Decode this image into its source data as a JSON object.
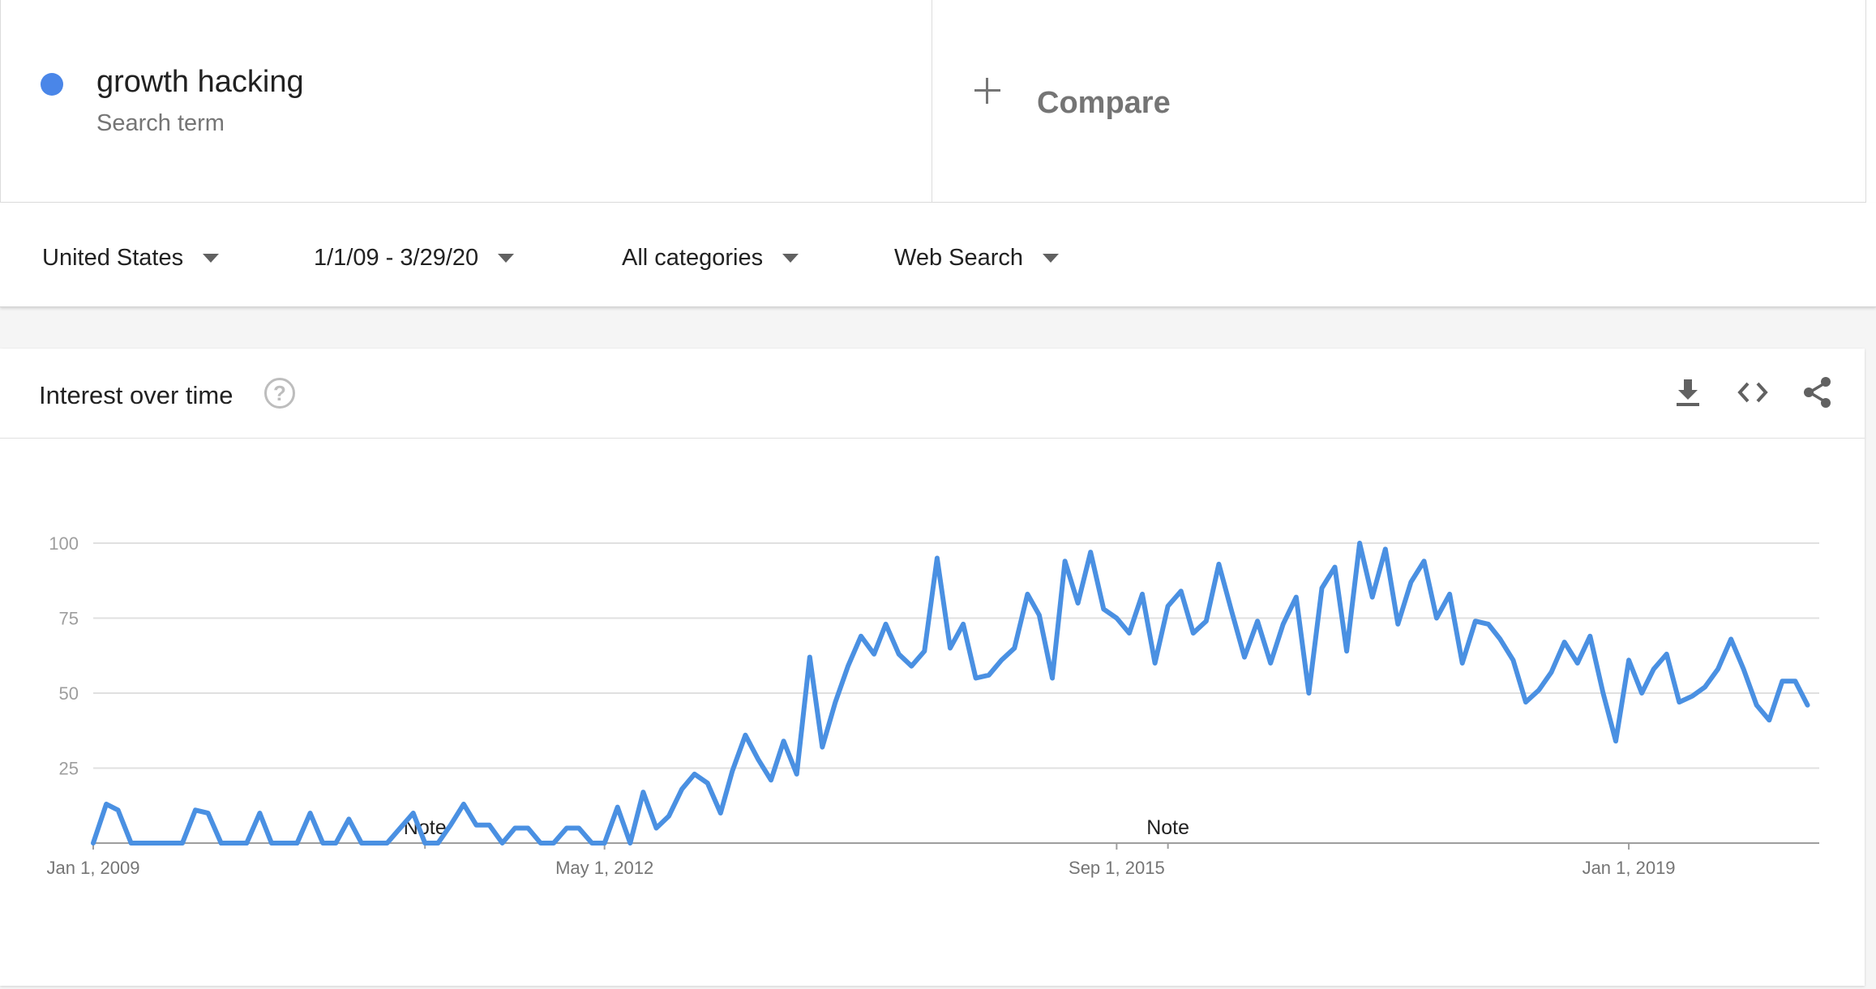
{
  "search_term": {
    "name": "growth hacking",
    "subtitle": "Search term",
    "color": "#4a86e8"
  },
  "compare": {
    "label": "Compare",
    "icon": "plus-icon"
  },
  "filters": {
    "region": "United States",
    "date_range": "1/1/09 - 3/29/20",
    "category": "All categories",
    "search_type": "Web Search"
  },
  "card": {
    "title": "Interest over time",
    "help_icon": "help-icon",
    "actions": [
      "download-icon",
      "embed-icon",
      "share-icon"
    ]
  },
  "chart_data": {
    "type": "line",
    "title": "",
    "xlabel": "",
    "ylabel": "",
    "ylim": [
      0,
      100
    ],
    "yticks": [
      25,
      50,
      75,
      100
    ],
    "xlim": [
      "2009-01-01",
      "2020-03-29"
    ],
    "x_tick_labels": [
      {
        "label": "Jan 1, 2009",
        "date": "2009-01-01"
      },
      {
        "label": "May 1, 2012",
        "date": "2012-05-01"
      },
      {
        "label": "Sep 1, 2015",
        "date": "2015-09-01"
      },
      {
        "label": "Jan 1, 2019",
        "date": "2019-01-01"
      }
    ],
    "annotations": [
      {
        "label": "Note",
        "date": "2011-03-01"
      },
      {
        "label": "Note",
        "date": "2016-01-01"
      }
    ],
    "grid": true,
    "series": [
      {
        "name": "growth hacking",
        "color": "#4a90e2",
        "points": [
          [
            "2009-01-01",
            0
          ],
          [
            "2009-02-01",
            13
          ],
          [
            "2009-03-01",
            11
          ],
          [
            "2009-04-01",
            0
          ],
          [
            "2009-05-01",
            0
          ],
          [
            "2009-06-01",
            0
          ],
          [
            "2009-07-01",
            0
          ],
          [
            "2009-08-01",
            0
          ],
          [
            "2009-09-01",
            11
          ],
          [
            "2009-10-01",
            10
          ],
          [
            "2009-11-01",
            0
          ],
          [
            "2009-12-01",
            0
          ],
          [
            "2010-01-01",
            0
          ],
          [
            "2010-02-01",
            10
          ],
          [
            "2010-03-01",
            0
          ],
          [
            "2010-04-01",
            0
          ],
          [
            "2010-05-01",
            0
          ],
          [
            "2010-06-01",
            10
          ],
          [
            "2010-07-01",
            0
          ],
          [
            "2010-08-01",
            0
          ],
          [
            "2010-09-01",
            8
          ],
          [
            "2010-10-01",
            0
          ],
          [
            "2010-11-01",
            0
          ],
          [
            "2010-12-01",
            0
          ],
          [
            "2011-01-01",
            5
          ],
          [
            "2011-02-01",
            10
          ],
          [
            "2011-03-01",
            0
          ],
          [
            "2011-04-01",
            0
          ],
          [
            "2011-05-01",
            6
          ],
          [
            "2011-06-01",
            13
          ],
          [
            "2011-07-01",
            6
          ],
          [
            "2011-08-01",
            6
          ],
          [
            "2011-09-01",
            0
          ],
          [
            "2011-10-01",
            5
          ],
          [
            "2011-11-01",
            5
          ],
          [
            "2011-12-01",
            0
          ],
          [
            "2012-01-01",
            0
          ],
          [
            "2012-02-01",
            5
          ],
          [
            "2012-03-01",
            5
          ],
          [
            "2012-04-01",
            0
          ],
          [
            "2012-05-01",
            0
          ],
          [
            "2012-06-01",
            12
          ],
          [
            "2012-07-01",
            0
          ],
          [
            "2012-08-01",
            17
          ],
          [
            "2012-09-01",
            5
          ],
          [
            "2012-10-01",
            9
          ],
          [
            "2012-11-01",
            18
          ],
          [
            "2012-12-01",
            23
          ],
          [
            "2013-01-01",
            20
          ],
          [
            "2013-02-01",
            10
          ],
          [
            "2013-03-01",
            24
          ],
          [
            "2013-04-01",
            36
          ],
          [
            "2013-05-01",
            28
          ],
          [
            "2013-06-01",
            21
          ],
          [
            "2013-07-01",
            34
          ],
          [
            "2013-08-01",
            23
          ],
          [
            "2013-09-01",
            62
          ],
          [
            "2013-10-01",
            32
          ],
          [
            "2013-11-01",
            47
          ],
          [
            "2013-12-01",
            59
          ],
          [
            "2014-01-01",
            69
          ],
          [
            "2014-02-01",
            63
          ],
          [
            "2014-03-01",
            73
          ],
          [
            "2014-04-01",
            63
          ],
          [
            "2014-05-01",
            59
          ],
          [
            "2014-06-01",
            64
          ],
          [
            "2014-07-01",
            95
          ],
          [
            "2014-08-01",
            65
          ],
          [
            "2014-09-01",
            73
          ],
          [
            "2014-10-01",
            55
          ],
          [
            "2014-11-01",
            56
          ],
          [
            "2014-12-01",
            61
          ],
          [
            "2015-01-01",
            65
          ],
          [
            "2015-02-01",
            83
          ],
          [
            "2015-03-01",
            76
          ],
          [
            "2015-04-01",
            55
          ],
          [
            "2015-05-01",
            94
          ],
          [
            "2015-06-01",
            80
          ],
          [
            "2015-07-01",
            97
          ],
          [
            "2015-08-01",
            78
          ],
          [
            "2015-09-01",
            75
          ],
          [
            "2015-10-01",
            70
          ],
          [
            "2015-11-01",
            83
          ],
          [
            "2015-12-01",
            60
          ],
          [
            "2016-01-01",
            79
          ],
          [
            "2016-02-01",
            84
          ],
          [
            "2016-03-01",
            70
          ],
          [
            "2016-04-01",
            74
          ],
          [
            "2016-05-01",
            93
          ],
          [
            "2016-06-01",
            77
          ],
          [
            "2016-07-01",
            62
          ],
          [
            "2016-08-01",
            74
          ],
          [
            "2016-09-01",
            60
          ],
          [
            "2016-10-01",
            73
          ],
          [
            "2016-11-01",
            82
          ],
          [
            "2016-12-01",
            50
          ],
          [
            "2017-01-01",
            85
          ],
          [
            "2017-02-01",
            92
          ],
          [
            "2017-03-01",
            64
          ],
          [
            "2017-04-01",
            100
          ],
          [
            "2017-05-01",
            82
          ],
          [
            "2017-06-01",
            98
          ],
          [
            "2017-07-01",
            73
          ],
          [
            "2017-08-01",
            87
          ],
          [
            "2017-09-01",
            94
          ],
          [
            "2017-10-01",
            75
          ],
          [
            "2017-11-01",
            83
          ],
          [
            "2017-12-01",
            60
          ],
          [
            "2018-01-01",
            74
          ],
          [
            "2018-02-01",
            73
          ],
          [
            "2018-03-01",
            68
          ],
          [
            "2018-04-01",
            61
          ],
          [
            "2018-05-01",
            47
          ],
          [
            "2018-06-01",
            51
          ],
          [
            "2018-07-01",
            57
          ],
          [
            "2018-08-01",
            67
          ],
          [
            "2018-09-01",
            60
          ],
          [
            "2018-10-01",
            69
          ],
          [
            "2018-11-01",
            50
          ],
          [
            "2018-12-01",
            34
          ],
          [
            "2019-01-01",
            61
          ],
          [
            "2019-02-01",
            50
          ],
          [
            "2019-03-01",
            58
          ],
          [
            "2019-04-01",
            63
          ],
          [
            "2019-05-01",
            47
          ],
          [
            "2019-06-01",
            49
          ],
          [
            "2019-07-01",
            52
          ],
          [
            "2019-08-01",
            58
          ],
          [
            "2019-09-01",
            68
          ],
          [
            "2019-10-01",
            58
          ],
          [
            "2019-11-01",
            46
          ],
          [
            "2019-12-01",
            41
          ],
          [
            "2020-01-01",
            54
          ],
          [
            "2020-02-01",
            54
          ],
          [
            "2020-03-01",
            46
          ]
        ]
      }
    ]
  }
}
